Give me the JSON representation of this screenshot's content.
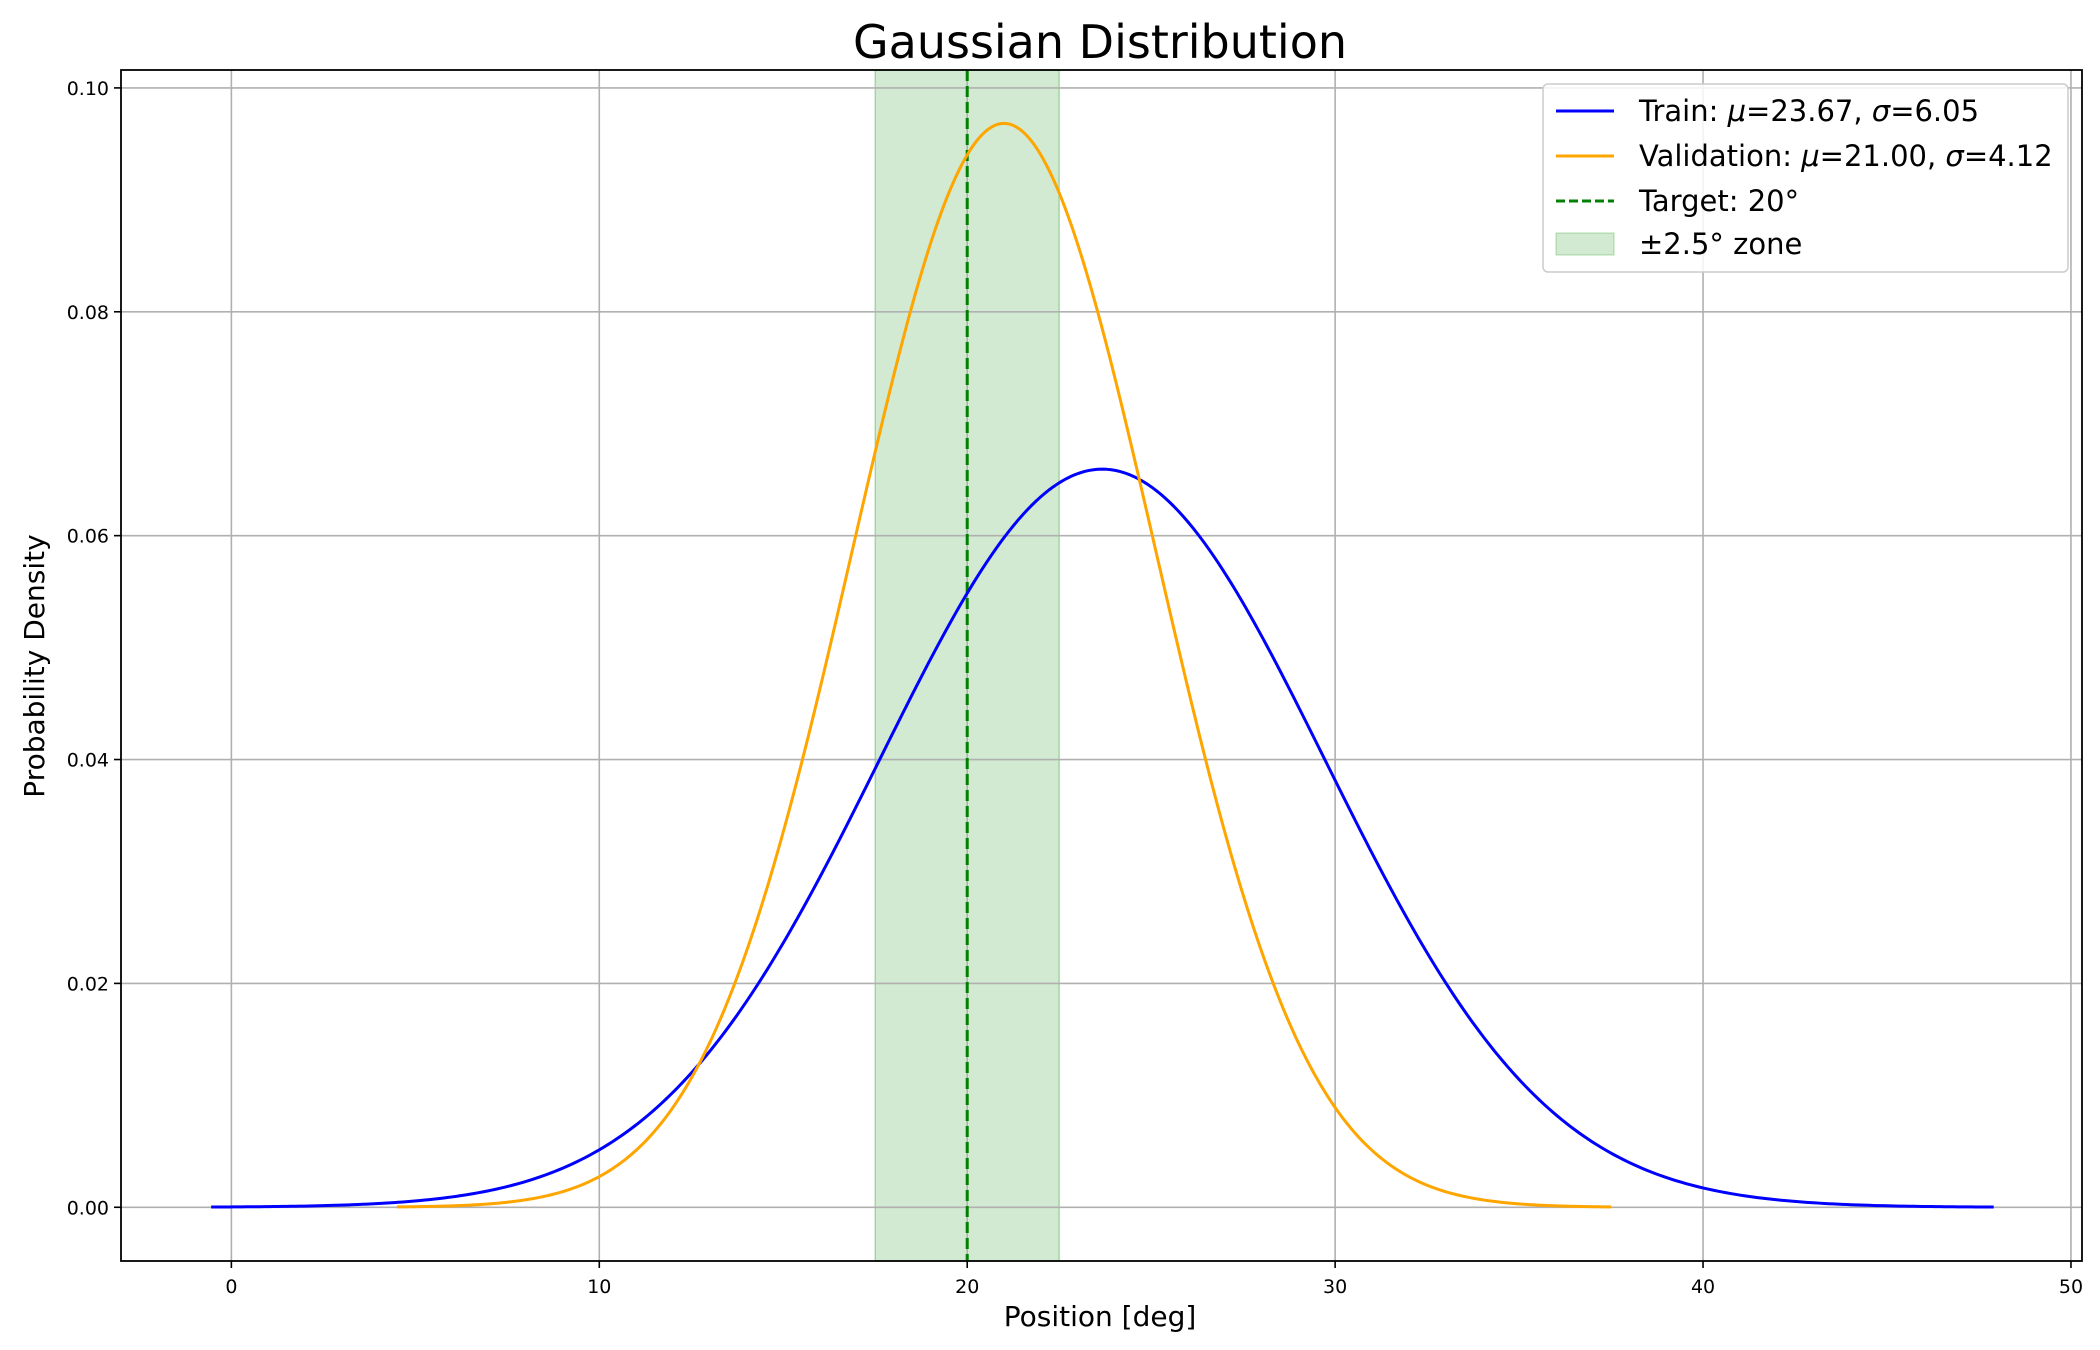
{
  "chart_data": {
    "type": "line",
    "title": "Gaussian Distribution",
    "xlabel": "Position [deg]",
    "ylabel": "Probability Density",
    "xlim": [
      -3,
      50.3
    ],
    "ylim": [
      -0.0048,
      0.1016
    ],
    "xticks": [
      0,
      10,
      20,
      30,
      40,
      50
    ],
    "xtick_labels": [
      "0",
      "10",
      "20",
      "30",
      "40",
      "50"
    ],
    "yticks": [
      0.0,
      0.02,
      0.04,
      0.06,
      0.08,
      0.1
    ],
    "ytick_labels": [
      "0.00",
      "0.02",
      "0.04",
      "0.06",
      "0.08",
      "0.10"
    ],
    "grid": true,
    "legend_position": "top-right",
    "series": [
      {
        "name": "Train: μ=23.67, σ=6.05",
        "name_parts": [
          "Train: ",
          "μ",
          "=23.67, ",
          "σ",
          "=6.05"
        ],
        "kind": "gaussian_pdf",
        "mu": 23.67,
        "sigma": 6.05,
        "x_range": [
          -0.55,
          47.9
        ],
        "color": "#0000ff",
        "style": "solid"
      },
      {
        "name": "Validation: μ=21.00, σ=4.12",
        "name_parts": [
          "Validation: ",
          "μ",
          "=21.00, ",
          "σ",
          "=4.12"
        ],
        "kind": "gaussian_pdf",
        "mu": 21.0,
        "sigma": 4.12,
        "x_range": [
          4.5,
          37.5
        ],
        "color": "#ffa500",
        "style": "solid"
      }
    ],
    "reference_line": {
      "name": "Target: 20°",
      "x": 20,
      "color": "#008000",
      "style": "dashed"
    },
    "shaded_zone": {
      "name": "±2.5° zone",
      "x_min": 17.5,
      "x_max": 22.5,
      "color": "#2ca02c",
      "opacity": 0.22
    }
  }
}
